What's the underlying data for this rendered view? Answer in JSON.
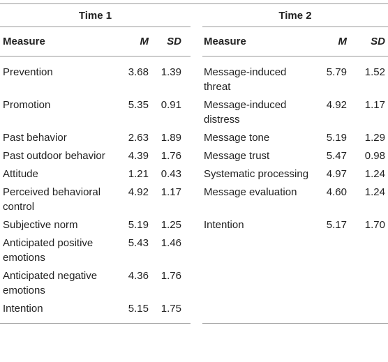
{
  "table": {
    "groups": [
      {
        "title": "Time 1",
        "columns": [
          "Measure",
          "M",
          "SD"
        ],
        "rows": [
          [
            "Prevention",
            "3.68",
            "1.39"
          ],
          [
            "Promotion",
            "5.35",
            "0.91"
          ],
          [
            "Past behavior",
            "2.63",
            "1.89"
          ],
          [
            "Past outdoor behavior",
            "4.39",
            "1.76"
          ],
          [
            "Attitude",
            "1.21",
            "0.43"
          ],
          [
            "Perceived behavioral control",
            "4.92",
            "1.17"
          ],
          [
            "Subjective norm",
            "5.19",
            "1.25"
          ],
          [
            "Anticipated positive emotions",
            "5.43",
            "1.46"
          ],
          [
            "Anticipated negative emotions",
            "4.36",
            "1.76"
          ],
          [
            "Intention",
            "5.15",
            "1.75"
          ]
        ]
      },
      {
        "title": "Time 2",
        "columns": [
          "Measure",
          "M",
          "SD"
        ],
        "rows": [
          [
            "Message-induced threat",
            "5.79",
            "1.52"
          ],
          [
            "Message-induced distress",
            "4.92",
            "1.17"
          ],
          [
            "Message tone",
            "5.19",
            "1.29"
          ],
          [
            "Message trust",
            "5.47",
            "0.98"
          ],
          [
            "Systematic processing",
            "4.97",
            "1.24"
          ],
          [
            "Message evaluation",
            "4.60",
            "1.24"
          ],
          [
            "Intention",
            "5.17",
            "1.70"
          ]
        ]
      }
    ]
  }
}
